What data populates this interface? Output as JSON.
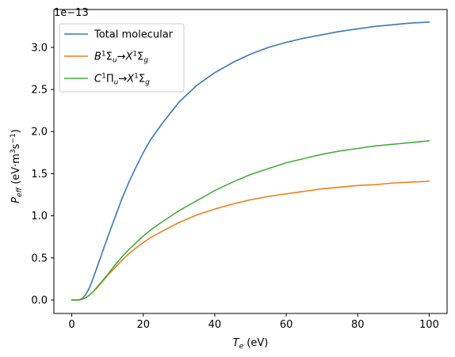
{
  "chart_data": {
    "type": "line",
    "title": "",
    "xlabel": {
      "main": "T",
      "sub": "e",
      "unit": " (eV)"
    },
    "ylabel": {
      "main": "P",
      "sub": "eff",
      "unit_pre": " (eV·m",
      "unit_sup1": "3",
      "unit_mid": "s",
      "unit_sup2": "−1",
      "unit_post": ")"
    },
    "offset_text": {
      "base": "1e",
      "exp": "−13"
    },
    "xlim": [
      -5,
      105
    ],
    "ylim": [
      -0.16,
      3.45
    ],
    "x_ticks": [
      0,
      20,
      40,
      60,
      80,
      100
    ],
    "y_ticks": [
      0.0,
      0.5,
      1.0,
      1.5,
      2.0,
      2.5,
      3.0
    ],
    "y_tick_labels": [
      "0.0",
      "0.5",
      "1.0",
      "1.5",
      "2.0",
      "2.5",
      "3.0"
    ],
    "y_scale_note": "values ×1e-13",
    "grid": false,
    "legend_position": "top-left",
    "x": [
      0,
      2,
      3,
      4,
      5,
      6,
      7,
      8,
      9,
      10,
      12,
      14,
      16,
      18,
      20,
      22,
      25,
      30,
      35,
      40,
      45,
      50,
      55,
      60,
      65,
      70,
      75,
      80,
      85,
      90,
      95,
      100
    ],
    "series": [
      {
        "name": "Total molecular",
        "label_parts": [
          {
            "t": "Total molecular"
          }
        ],
        "color": "#3a78b5",
        "values": [
          0.0,
          0.0,
          0.02,
          0.07,
          0.15,
          0.26,
          0.38,
          0.5,
          0.62,
          0.74,
          0.97,
          1.2,
          1.4,
          1.58,
          1.75,
          1.9,
          2.08,
          2.35,
          2.55,
          2.7,
          2.82,
          2.92,
          3.0,
          3.06,
          3.11,
          3.15,
          3.19,
          3.22,
          3.25,
          3.27,
          3.29,
          3.3
        ]
      },
      {
        "name": "B1Σu → X1Σg",
        "label_parts": [
          {
            "t": "B",
            "i": true
          },
          {
            "t": "1",
            "sup": true
          },
          {
            "t": "Σ"
          },
          {
            "t": "u",
            "sub": true,
            "i": true
          },
          {
            "t": "→"
          },
          {
            "t": "X",
            "i": true
          },
          {
            "t": "1",
            "sup": true
          },
          {
            "t": "Σ"
          },
          {
            "t": "g",
            "sub": true,
            "i": true
          }
        ],
        "color": "#f07f16",
        "values": [
          0.0,
          0.0,
          0.01,
          0.03,
          0.06,
          0.1,
          0.14,
          0.19,
          0.24,
          0.29,
          0.38,
          0.47,
          0.55,
          0.62,
          0.68,
          0.74,
          0.81,
          0.92,
          1.01,
          1.08,
          1.14,
          1.19,
          1.23,
          1.26,
          1.29,
          1.32,
          1.34,
          1.36,
          1.37,
          1.39,
          1.4,
          1.41
        ]
      },
      {
        "name": "C1Πu → X1Σg",
        "label_parts": [
          {
            "t": "C",
            "i": true
          },
          {
            "t": "1",
            "sup": true
          },
          {
            "t": "Π"
          },
          {
            "t": "u",
            "sub": true,
            "i": true
          },
          {
            "t": "→"
          },
          {
            "t": "X",
            "i": true
          },
          {
            "t": "1",
            "sup": true
          },
          {
            "t": "Σ"
          },
          {
            "t": "g",
            "sub": true,
            "i": true
          }
        ],
        "color": "#44ad3f",
        "values": [
          0.0,
          0.0,
          0.01,
          0.03,
          0.06,
          0.1,
          0.15,
          0.2,
          0.25,
          0.3,
          0.41,
          0.51,
          0.6,
          0.68,
          0.76,
          0.83,
          0.92,
          1.06,
          1.18,
          1.3,
          1.4,
          1.49,
          1.56,
          1.63,
          1.68,
          1.73,
          1.77,
          1.8,
          1.83,
          1.85,
          1.87,
          1.89
        ]
      }
    ]
  }
}
